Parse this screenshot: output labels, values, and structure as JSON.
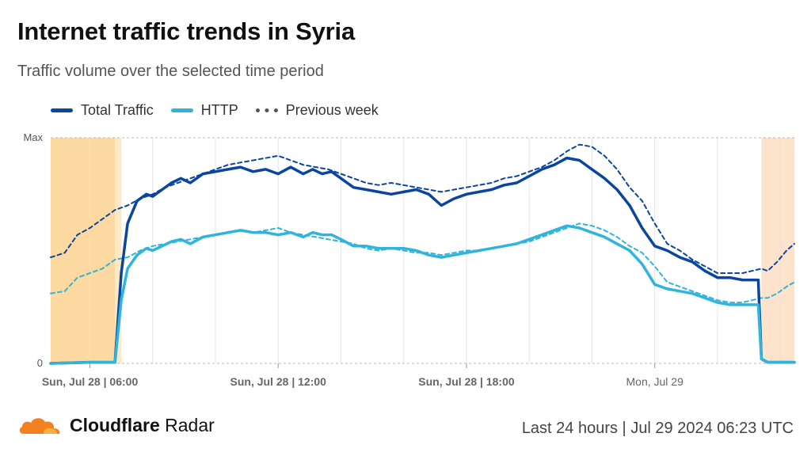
{
  "header": {
    "title": "Internet traffic trends in Syria",
    "subtitle": "Traffic volume over the selected time period"
  },
  "legend": [
    {
      "label": "Total Traffic",
      "color": "#0a46a0",
      "style": "solid"
    },
    {
      "label": "HTTP",
      "color": "#30b4dc",
      "style": "solid"
    },
    {
      "label": "Previous week",
      "color": "#555555",
      "style": "dashed"
    }
  ],
  "footer": {
    "brand_bold": "Cloudflare",
    "brand_rest": "Radar",
    "range": "Last 24 hours | Jul 29 2024 06:23 UTC"
  },
  "chart_data": {
    "type": "line",
    "x_hours_label_note": "",
    "xlim": [
      4.75,
      28.45
    ],
    "ylim": [
      0,
      100
    ],
    "y_tick_labels": [
      {
        "value": 0,
        "label": "0"
      },
      {
        "value": 100,
        "label": "Max"
      }
    ],
    "x_tick_labels": [
      {
        "x": 6,
        "label": "Sun, Jul 28 | 06:00",
        "bold": true
      },
      {
        "x": 12,
        "label": "Sun, Jul 28 | 12:00",
        "bold": true
      },
      {
        "x": 18,
        "label": "Sun, Jul 28 | 18:00",
        "bold": true
      },
      {
        "x": 24,
        "label": "Mon, Jul 29",
        "bold": false
      }
    ],
    "shaded_regions": [
      {
        "from": 4.75,
        "to": 6.8,
        "color": "#fcd9a0"
      },
      {
        "from": 6.8,
        "to": 7.0,
        "color": "#fde8c8"
      },
      {
        "from": 27.4,
        "to": 28.45,
        "color": "#fde2cc"
      }
    ],
    "series": [
      {
        "name": "Total Traffic",
        "color": "#0a46a0",
        "dashed": false,
        "x": [
          4.75,
          6.0,
          6.8,
          7.0,
          7.2,
          7.5,
          7.8,
          8.0,
          8.3,
          8.6,
          8.9,
          9.2,
          9.6,
          10.0,
          10.4,
          10.8,
          11.2,
          11.6,
          12.0,
          12.4,
          12.8,
          13.1,
          13.4,
          13.7,
          14.0,
          14.4,
          14.8,
          15.2,
          15.6,
          16.0,
          16.4,
          16.8,
          17.2,
          17.6,
          18.0,
          18.4,
          18.8,
          19.2,
          19.6,
          20.0,
          20.4,
          20.8,
          21.2,
          21.6,
          22.0,
          22.4,
          22.8,
          23.2,
          23.6,
          24.0,
          24.4,
          24.8,
          25.2,
          25.6,
          26.0,
          26.4,
          26.8,
          27.1,
          27.3,
          27.4,
          27.6,
          28.0,
          28.45
        ],
        "y": [
          0,
          0.5,
          0.5,
          40,
          62,
          72,
          75,
          74,
          77,
          80,
          82,
          80,
          84,
          85,
          86,
          87,
          85,
          86,
          84,
          87,
          84,
          86,
          84,
          85,
          82,
          78,
          77,
          76,
          75,
          76,
          77,
          75,
          70,
          73,
          75,
          76,
          77,
          79,
          80,
          83,
          86,
          88,
          91,
          90,
          86,
          82,
          77,
          70,
          60,
          52,
          50,
          47,
          45,
          41,
          38,
          38,
          37,
          37,
          37,
          2,
          0.5,
          0.5,
          0.5
        ]
      },
      {
        "name": "HTTP",
        "color": "#30b4dc",
        "dashed": false,
        "x": [
          4.75,
          6.0,
          6.8,
          7.0,
          7.2,
          7.5,
          7.8,
          8.0,
          8.3,
          8.6,
          8.9,
          9.2,
          9.6,
          10.0,
          10.4,
          10.8,
          11.2,
          11.6,
          12.0,
          12.4,
          12.8,
          13.1,
          13.4,
          13.7,
          14.0,
          14.4,
          14.8,
          15.2,
          15.6,
          16.0,
          16.4,
          16.8,
          17.2,
          17.6,
          18.0,
          18.4,
          18.8,
          19.2,
          19.6,
          20.0,
          20.4,
          20.8,
          21.2,
          21.6,
          22.0,
          22.4,
          22.8,
          23.2,
          23.6,
          24.0,
          24.4,
          24.8,
          25.2,
          25.6,
          26.0,
          26.4,
          26.8,
          27.1,
          27.3,
          27.4,
          27.6,
          28.0,
          28.45
        ],
        "y": [
          0,
          0.5,
          0.5,
          28,
          42,
          48,
          51,
          50,
          52,
          54,
          55,
          53,
          56,
          57,
          58,
          59,
          58,
          58,
          57,
          58,
          56,
          58,
          57,
          57,
          55,
          52,
          52,
          51,
          51,
          51,
          50,
          48,
          47,
          48,
          49,
          50,
          51,
          52,
          53,
          55,
          57,
          59,
          61,
          60,
          58,
          56,
          53,
          50,
          44,
          35,
          33,
          32,
          31,
          29,
          27,
          26,
          26,
          26,
          26,
          2,
          0.5,
          0.5,
          0.5
        ]
      },
      {
        "name": "Previous week",
        "color": "#0a46a0",
        "dashed": true,
        "x": [
          4.75,
          5.2,
          5.6,
          6.0,
          6.4,
          6.8,
          7.2,
          7.6,
          8.0,
          8.4,
          8.8,
          9.2,
          9.6,
          10.0,
          10.4,
          10.8,
          11.2,
          11.6,
          12.0,
          12.4,
          12.8,
          13.2,
          13.6,
          14.0,
          14.4,
          14.8,
          15.2,
          15.6,
          16.0,
          16.4,
          16.8,
          17.2,
          17.6,
          18.0,
          18.4,
          18.8,
          19.2,
          19.6,
          20.0,
          20.4,
          20.8,
          21.2,
          21.6,
          22.0,
          22.4,
          22.8,
          23.2,
          23.6,
          24.0,
          24.4,
          24.8,
          25.2,
          25.6,
          26.0,
          26.4,
          26.8,
          27.1,
          27.4,
          27.6,
          27.9,
          28.2,
          28.45
        ],
        "y": [
          47,
          49,
          57,
          60,
          64,
          68,
          70,
          73,
          75,
          78,
          80,
          82,
          84,
          86,
          88,
          89,
          90,
          91,
          92,
          90,
          88,
          87,
          86,
          84,
          82,
          80,
          79,
          80,
          79,
          78,
          77,
          76,
          77,
          78,
          79,
          80,
          82,
          83,
          85,
          87,
          90,
          94,
          97,
          96,
          92,
          86,
          78,
          72,
          62,
          53,
          50,
          46,
          43,
          40,
          40,
          40,
          41,
          42,
          41,
          45,
          50,
          53
        ]
      },
      {
        "name": "Previous week HTTP",
        "color": "#30b4dc",
        "dashed": true,
        "x": [
          4.75,
          5.2,
          5.6,
          6.0,
          6.4,
          6.8,
          7.2,
          7.6,
          8.0,
          8.4,
          8.8,
          9.2,
          9.6,
          10.0,
          10.4,
          10.8,
          11.2,
          11.6,
          12.0,
          12.4,
          12.8,
          13.2,
          13.6,
          14.0,
          14.4,
          14.8,
          15.2,
          15.6,
          16.0,
          16.4,
          16.8,
          17.2,
          17.6,
          18.0,
          18.4,
          18.8,
          19.2,
          19.6,
          20.0,
          20.4,
          20.8,
          21.2,
          21.6,
          22.0,
          22.4,
          22.8,
          23.2,
          23.6,
          24.0,
          24.4,
          24.8,
          25.2,
          25.6,
          26.0,
          26.4,
          26.8,
          27.1,
          27.4,
          27.6,
          27.9,
          28.2,
          28.45
        ],
        "y": [
          31,
          32,
          38,
          40,
          42,
          46,
          47,
          50,
          52,
          53,
          54,
          55,
          56,
          57,
          58,
          59,
          58,
          59,
          60,
          58,
          57,
          56,
          55,
          54,
          53,
          51,
          50,
          51,
          50,
          49,
          49,
          48,
          49,
          50,
          50,
          51,
          52,
          53,
          54,
          56,
          58,
          60,
          62,
          61,
          59,
          56,
          52,
          49,
          43,
          36,
          34,
          32,
          30,
          28,
          27,
          27,
          28,
          29,
          29,
          31,
          34,
          36
        ]
      }
    ]
  }
}
